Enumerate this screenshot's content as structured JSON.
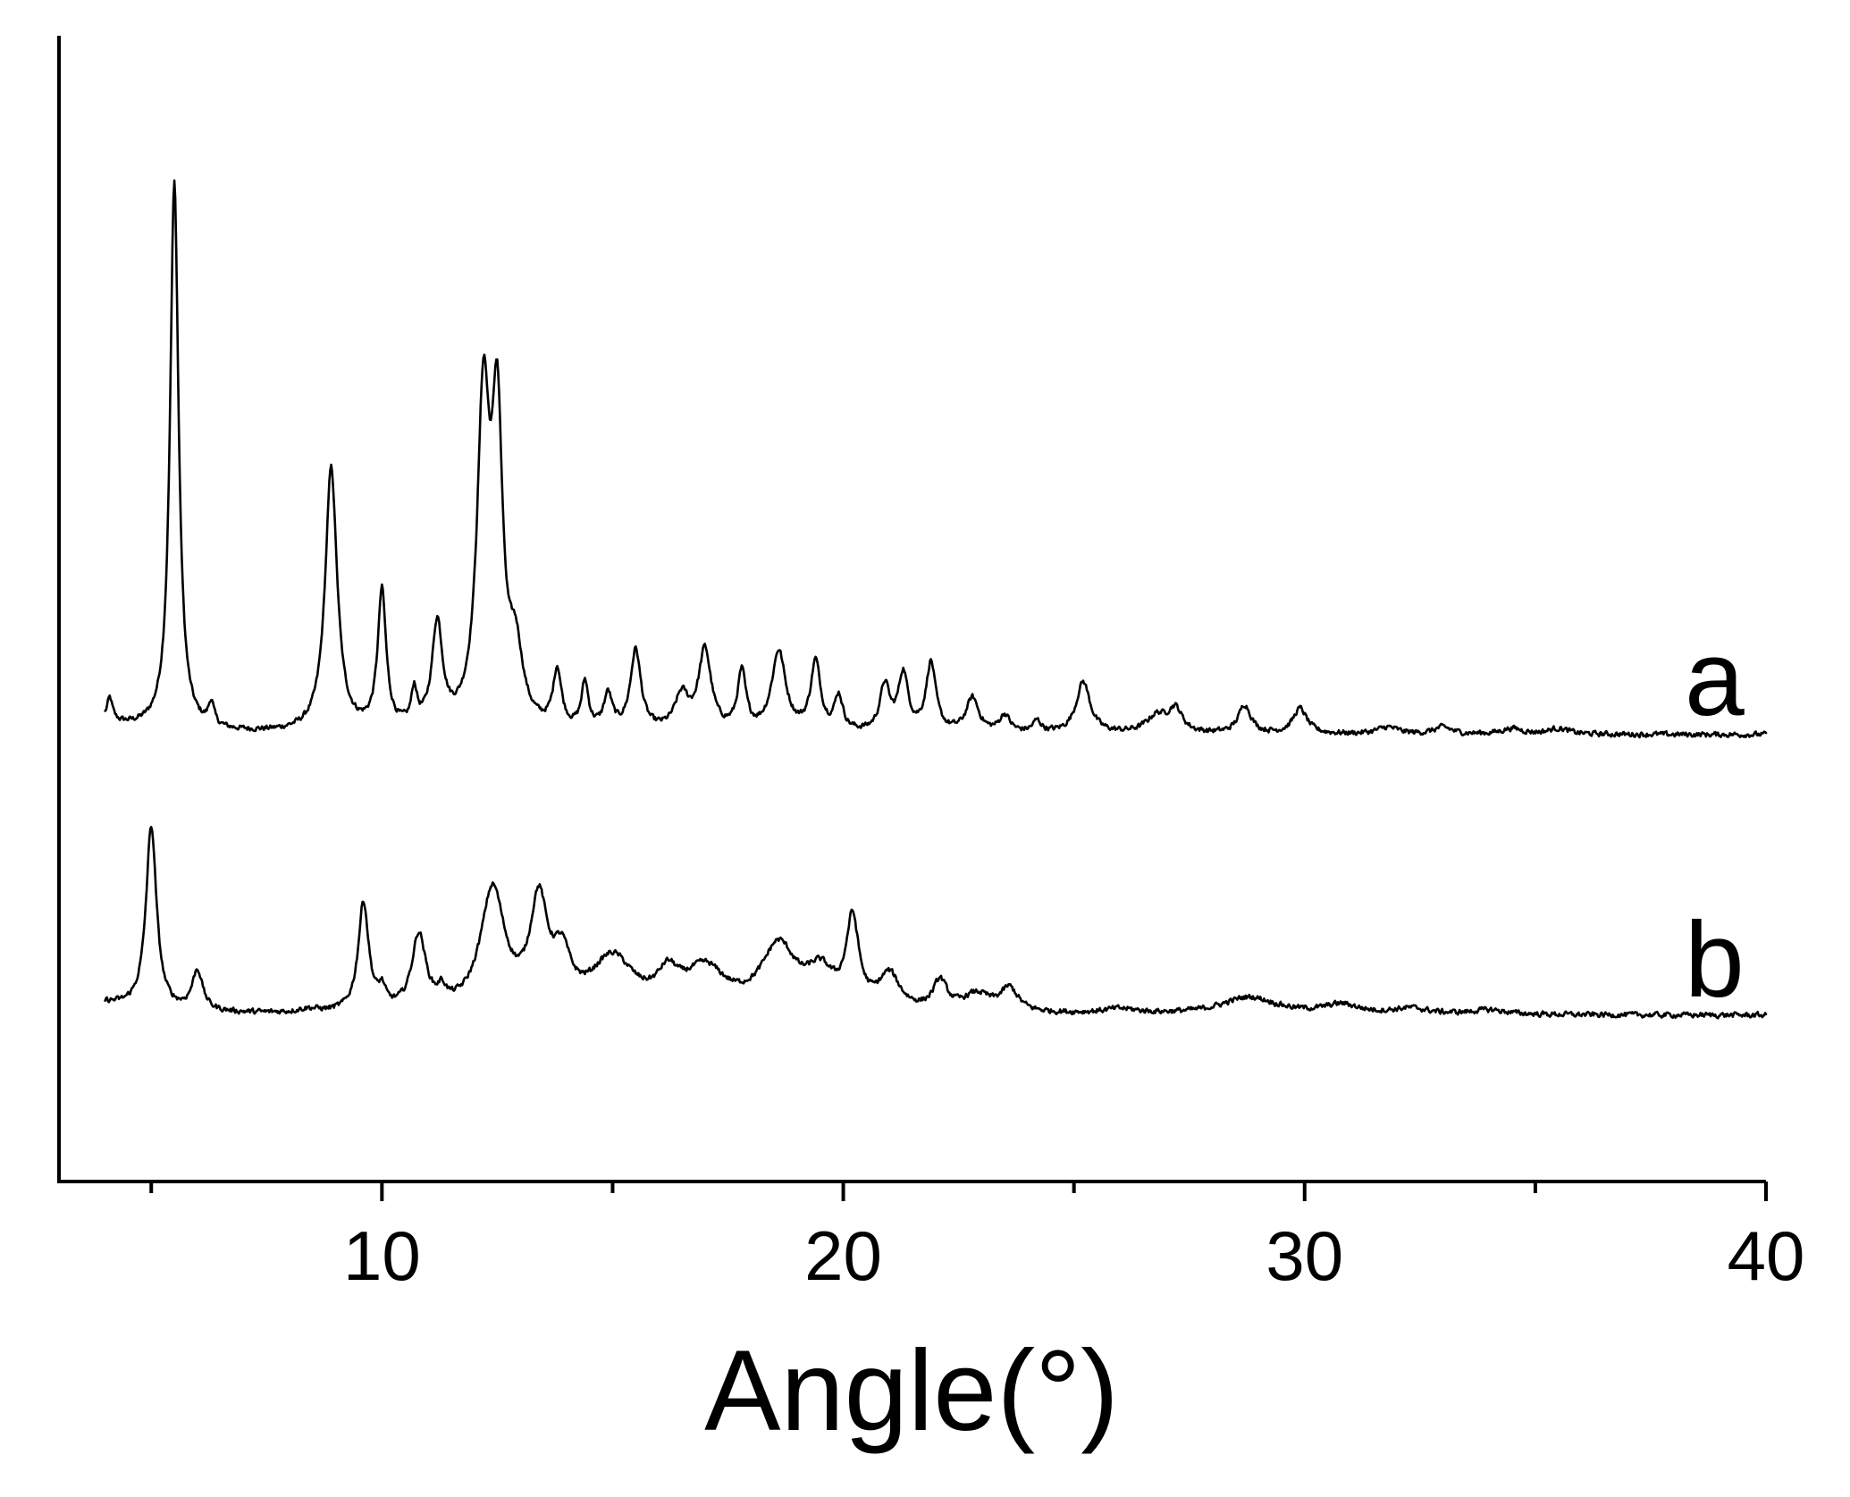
{
  "chart_data": {
    "type": "line",
    "xlabel": "Angle(°)",
    "ylabel": "",
    "xlim": [
      3,
      40
    ],
    "ylim": [
      0,
      1
    ],
    "x_ticks_major": [
      10,
      20,
      30,
      40
    ],
    "x_ticks_minor": [
      5,
      15,
      25,
      35
    ],
    "tick_labels": [
      "10",
      "20",
      "30",
      "40"
    ],
    "y_axis_ticks": false,
    "grid": false,
    "legend": "none",
    "series": [
      {
        "name": "a",
        "baseline": 0.39,
        "peaks": [
          {
            "x": 4.1,
            "h": 0.02,
            "w": 0.08
          },
          {
            "x": 5.5,
            "h": 0.48,
            "w": 0.12
          },
          {
            "x": 6.3,
            "h": 0.02,
            "w": 0.08
          },
          {
            "x": 8.9,
            "h": 0.23,
            "w": 0.17
          },
          {
            "x": 10.0,
            "h": 0.12,
            "w": 0.12
          },
          {
            "x": 10.7,
            "h": 0.03,
            "w": 0.08
          },
          {
            "x": 11.2,
            "h": 0.09,
            "w": 0.15
          },
          {
            "x": 12.2,
            "h": 0.28,
            "w": 0.18
          },
          {
            "x": 12.5,
            "h": 0.25,
            "w": 0.15
          },
          {
            "x": 12.9,
            "h": 0.06,
            "w": 0.2
          },
          {
            "x": 13.8,
            "h": 0.05,
            "w": 0.12
          },
          {
            "x": 14.4,
            "h": 0.04,
            "w": 0.1
          },
          {
            "x": 14.9,
            "h": 0.03,
            "w": 0.12
          },
          {
            "x": 15.5,
            "h": 0.07,
            "w": 0.15
          },
          {
            "x": 16.5,
            "h": 0.03,
            "w": 0.2
          },
          {
            "x": 17.0,
            "h": 0.07,
            "w": 0.18
          },
          {
            "x": 17.8,
            "h": 0.05,
            "w": 0.12
          },
          {
            "x": 18.6,
            "h": 0.07,
            "w": 0.2
          },
          {
            "x": 19.4,
            "h": 0.06,
            "w": 0.14
          },
          {
            "x": 19.9,
            "h": 0.03,
            "w": 0.12
          },
          {
            "x": 20.9,
            "h": 0.04,
            "w": 0.14
          },
          {
            "x": 21.3,
            "h": 0.05,
            "w": 0.14
          },
          {
            "x": 21.9,
            "h": 0.06,
            "w": 0.14
          },
          {
            "x": 22.8,
            "h": 0.03,
            "w": 0.18
          },
          {
            "x": 23.5,
            "h": 0.015,
            "w": 0.15
          },
          {
            "x": 24.2,
            "h": 0.01,
            "w": 0.12
          },
          {
            "x": 25.2,
            "h": 0.045,
            "w": 0.2
          },
          {
            "x": 26.8,
            "h": 0.015,
            "w": 0.3
          },
          {
            "x": 27.2,
            "h": 0.02,
            "w": 0.2
          },
          {
            "x": 28.7,
            "h": 0.025,
            "w": 0.18
          },
          {
            "x": 29.9,
            "h": 0.022,
            "w": 0.2
          },
          {
            "x": 31.8,
            "h": 0.006,
            "w": 0.3
          },
          {
            "x": 33.0,
            "h": 0.006,
            "w": 0.25
          },
          {
            "x": 34.5,
            "h": 0.005,
            "w": 0.3
          },
          {
            "x": 35.5,
            "h": 0.005,
            "w": 0.3
          }
        ]
      },
      {
        "name": "b",
        "baseline": 0.145,
        "peaks": [
          {
            "x": 5.0,
            "h": 0.16,
            "w": 0.15
          },
          {
            "x": 6.0,
            "h": 0.035,
            "w": 0.15
          },
          {
            "x": 8.4,
            "h": 0.003,
            "w": 0.3
          },
          {
            "x": 9.6,
            "h": 0.095,
            "w": 0.15
          },
          {
            "x": 10.0,
            "h": 0.015,
            "w": 0.1
          },
          {
            "x": 10.8,
            "h": 0.065,
            "w": 0.2
          },
          {
            "x": 11.3,
            "h": 0.012,
            "w": 0.12
          },
          {
            "x": 12.4,
            "h": 0.105,
            "w": 0.35
          },
          {
            "x": 13.4,
            "h": 0.09,
            "w": 0.25
          },
          {
            "x": 13.9,
            "h": 0.04,
            "w": 0.25
          },
          {
            "x": 15.0,
            "h": 0.045,
            "w": 0.6
          },
          {
            "x": 16.2,
            "h": 0.025,
            "w": 0.3
          },
          {
            "x": 17.0,
            "h": 0.035,
            "w": 0.6
          },
          {
            "x": 18.6,
            "h": 0.055,
            "w": 0.5
          },
          {
            "x": 19.5,
            "h": 0.03,
            "w": 0.4
          },
          {
            "x": 20.2,
            "h": 0.075,
            "w": 0.18
          },
          {
            "x": 21.0,
            "h": 0.03,
            "w": 0.3
          },
          {
            "x": 22.1,
            "h": 0.025,
            "w": 0.2
          },
          {
            "x": 22.9,
            "h": 0.015,
            "w": 0.4
          },
          {
            "x": 23.6,
            "h": 0.02,
            "w": 0.25
          },
          {
            "x": 26.0,
            "h": 0.004,
            "w": 0.5
          },
          {
            "x": 28.8,
            "h": 0.015,
            "w": 0.8
          },
          {
            "x": 30.8,
            "h": 0.008,
            "w": 0.5
          },
          {
            "x": 32.3,
            "h": 0.005,
            "w": 0.5
          },
          {
            "x": 34.0,
            "h": 0.004,
            "w": 0.5
          }
        ]
      }
    ]
  }
}
